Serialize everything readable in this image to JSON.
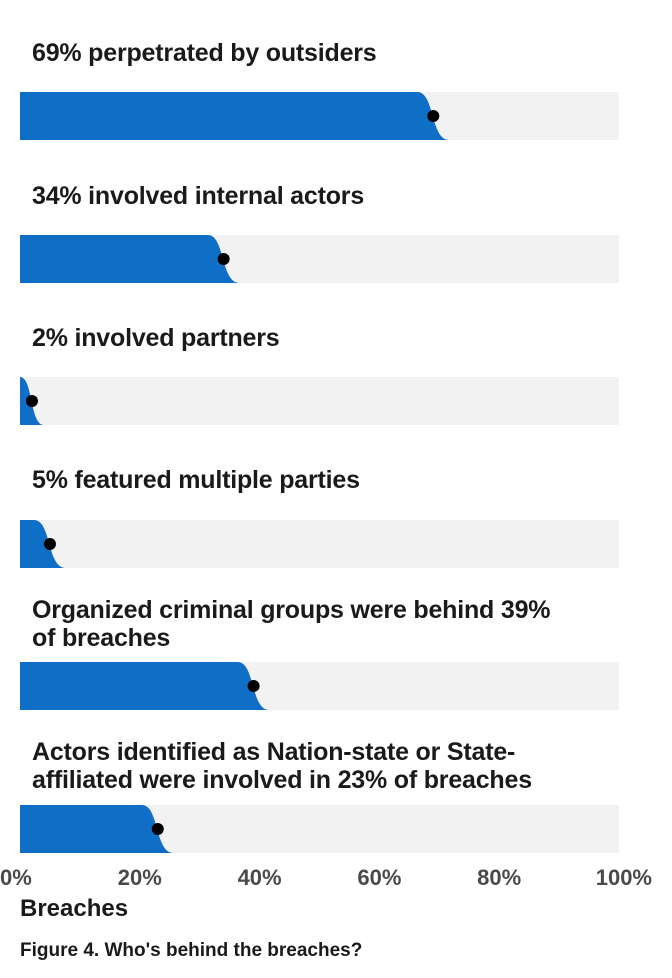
{
  "chart_data": {
    "type": "bar",
    "orientation": "horizontal",
    "categories": [
      "69% perpetrated by outsiders",
      "34% involved internal actors",
      "2% involved partners",
      "5% featured multiple parties",
      "Organized criminal groups were behind 39% of breaches",
      "Actors identified as Nation-state or State-affiliated were involved in 23% of breaches"
    ],
    "values": [
      69,
      34,
      2,
      5,
      39,
      23
    ],
    "xlabel": "Breaches",
    "xlim": [
      0,
      100
    ],
    "x_ticks": [
      "0%",
      "20%",
      "40%",
      "60%",
      "80%",
      "100%"
    ],
    "grid": false,
    "colors": {
      "bar": "#0f6fc6",
      "track": "#f2f2f2",
      "marker": "#000000"
    }
  },
  "labels": {
    "row1": "69% perpetrated by outsiders",
    "row2": "34% involved internal actors",
    "row3": "2% involved partners",
    "row4": "5% featured multiple parties",
    "row5_line1": "Organized criminal groups were behind 39%",
    "row5_line2": "of breaches",
    "row6_line1": "Actors identified as Nation-state or State-",
    "row6_line2": "affiliated were involved in 23% of breaches"
  },
  "caption": "Figure 4. Who's behind the breaches?"
}
